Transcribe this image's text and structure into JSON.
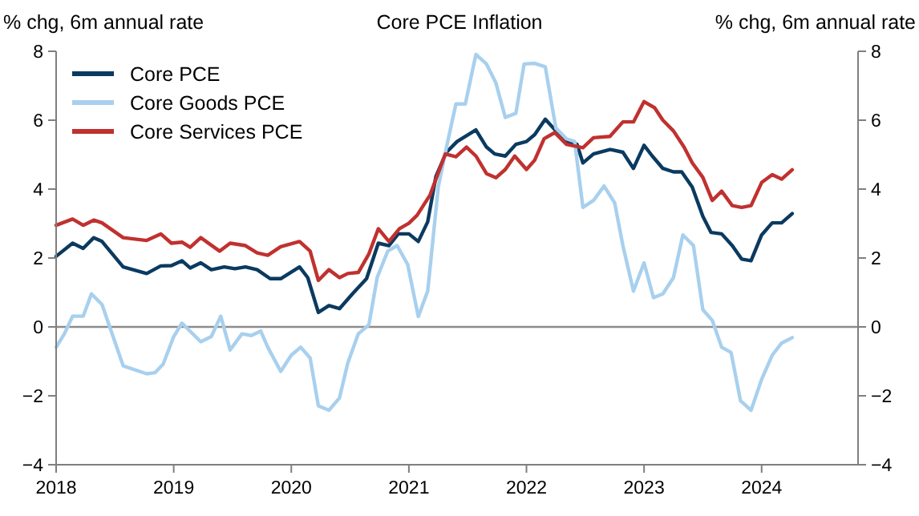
{
  "chart_data": {
    "type": "line",
    "title": "Core PCE Inflation",
    "ylabel": "% chg, 6m annual rate",
    "y2label": "% chg, 6m annual rate",
    "xlim": [
      2018,
      2024.82
    ],
    "xticks": [
      2018,
      2019,
      2020,
      2021,
      2022,
      2023,
      2024
    ],
    "ylim": [
      -4,
      8
    ],
    "yticks": [
      {
        "value": -4,
        "label": "−4"
      },
      {
        "value": -2,
        "label": "−2"
      },
      0,
      2,
      4,
      6,
      8
    ],
    "y2lim": [
      -4,
      8
    ],
    "y2ticks": [
      {
        "value": -4,
        "label": "−4"
      },
      {
        "value": -2,
        "label": "−2"
      },
      0,
      2,
      4,
      6,
      8
    ],
    "grid": false,
    "legend": "top left",
    "line_style": "solid",
    "marker": "none",
    "ref_lines": [
      {
        "axis": "y",
        "value": 0,
        "color": "#8c8c8c"
      }
    ],
    "series": [
      {
        "name": "Core PCE",
        "color": "#0b3a60",
        "x": [
          2018.0,
          2018.14,
          2018.23,
          2018.32,
          2018.39,
          2018.57,
          2018.77,
          2018.89,
          2018.98,
          2019.07,
          2019.14,
          2019.23,
          2019.32,
          2019.43,
          2019.52,
          2019.61,
          2019.71,
          2019.82,
          2019.91,
          2020.07,
          2020.14,
          2020.23,
          2020.32,
          2020.41,
          2020.52,
          2020.64,
          2020.74,
          2020.83,
          2020.91,
          2021.0,
          2021.08,
          2021.16,
          2021.23,
          2021.32,
          2021.41,
          2021.57,
          2021.66,
          2021.73,
          2021.82,
          2021.91,
          2022.0,
          2022.07,
          2022.16,
          2022.25,
          2022.34,
          2022.43,
          2022.48,
          2022.57,
          2022.71,
          2022.82,
          2022.91,
          2023.0,
          2023.07,
          2023.16,
          2023.25,
          2023.32,
          2023.41,
          2023.5,
          2023.57,
          2023.66,
          2023.75,
          2023.83,
          2023.91,
          2024.0,
          2024.09,
          2024.17,
          2024.26
        ],
        "values": [
          2.05,
          2.43,
          2.28,
          2.59,
          2.48,
          1.74,
          1.55,
          1.77,
          1.78,
          1.92,
          1.71,
          1.86,
          1.66,
          1.74,
          1.69,
          1.74,
          1.66,
          1.4,
          1.4,
          1.74,
          1.43,
          0.42,
          0.62,
          0.53,
          0.96,
          1.4,
          2.43,
          2.36,
          2.7,
          2.7,
          2.48,
          3.05,
          4.37,
          5.07,
          5.38,
          5.72,
          5.22,
          5.02,
          4.96,
          5.3,
          5.38,
          5.58,
          6.03,
          5.69,
          5.38,
          5.3,
          4.76,
          5.02,
          5.15,
          5.07,
          4.6,
          5.27,
          4.96,
          4.6,
          4.5,
          4.5,
          4.06,
          3.21,
          2.74,
          2.7,
          2.36,
          1.97,
          1.92,
          2.67,
          3.02,
          3.02,
          3.29
        ]
      },
      {
        "name": "Core Goods PCE",
        "color": "#a8d0ee",
        "x": [
          2018.0,
          2018.07,
          2018.14,
          2018.23,
          2018.3,
          2018.39,
          2018.57,
          2018.77,
          2018.84,
          2018.91,
          2019.0,
          2019.07,
          2019.23,
          2019.32,
          2019.4,
          2019.48,
          2019.58,
          2019.66,
          2019.74,
          2019.8,
          2019.91,
          2020.0,
          2020.08,
          2020.16,
          2020.23,
          2020.32,
          2020.41,
          2020.48,
          2020.57,
          2020.66,
          2020.73,
          2020.82,
          2020.9,
          2020.99,
          2021.08,
          2021.16,
          2021.25,
          2021.32,
          2021.4,
          2021.48,
          2021.57,
          2021.66,
          2021.74,
          2021.82,
          2021.91,
          2021.98,
          2022.07,
          2022.16,
          2022.25,
          2022.34,
          2022.41,
          2022.48,
          2022.57,
          2022.66,
          2022.75,
          2022.82,
          2022.91,
          2023.0,
          2023.08,
          2023.16,
          2023.25,
          2023.33,
          2023.42,
          2023.5,
          2023.58,
          2023.66,
          2023.74,
          2023.82,
          2023.91,
          2024.0,
          2024.09,
          2024.17,
          2024.26
        ],
        "values": [
          -0.59,
          -0.2,
          0.31,
          0.31,
          0.96,
          0.65,
          -1.13,
          -1.36,
          -1.33,
          -1.08,
          -0.28,
          0.11,
          -0.43,
          -0.28,
          0.31,
          -0.67,
          -0.2,
          -0.25,
          -0.12,
          -0.59,
          -1.29,
          -0.82,
          -0.59,
          -0.9,
          -2.29,
          -2.42,
          -2.06,
          -1.05,
          -0.2,
          0.06,
          1.43,
          2.2,
          2.36,
          1.81,
          0.3,
          1.04,
          4.06,
          5.22,
          6.47,
          6.47,
          7.91,
          7.63,
          7.08,
          6.08,
          6.2,
          7.63,
          7.65,
          7.55,
          5.77,
          5.46,
          5.38,
          3.47,
          3.67,
          4.09,
          3.6,
          2.36,
          1.04,
          1.86,
          0.85,
          0.96,
          1.43,
          2.67,
          2.36,
          0.5,
          0.19,
          -0.59,
          -0.74,
          -2.14,
          -2.42,
          -1.52,
          -0.82,
          -0.47,
          -0.31
        ]
      },
      {
        "name": "Core Services PCE",
        "color": "#c0312f",
        "x": [
          2018.0,
          2018.14,
          2018.23,
          2018.32,
          2018.39,
          2018.57,
          2018.77,
          2018.89,
          2018.98,
          2019.07,
          2019.14,
          2019.23,
          2019.39,
          2019.48,
          2019.61,
          2019.71,
          2019.8,
          2019.91,
          2020.07,
          2020.16,
          2020.23,
          2020.32,
          2020.41,
          2020.48,
          2020.57,
          2020.66,
          2020.74,
          2020.83,
          2020.92,
          2021.0,
          2021.07,
          2021.18,
          2021.31,
          2021.4,
          2021.49,
          2021.57,
          2021.66,
          2021.74,
          2021.82,
          2021.9,
          2022.0,
          2022.07,
          2022.15,
          2022.24,
          2022.34,
          2022.48,
          2022.57,
          2022.71,
          2022.82,
          2022.91,
          2023.0,
          2023.09,
          2023.16,
          2023.25,
          2023.34,
          2023.41,
          2023.5,
          2023.58,
          2023.66,
          2023.75,
          2023.83,
          2023.91,
          2024.0,
          2024.09,
          2024.17,
          2024.26
        ],
        "values": [
          2.95,
          3.13,
          2.95,
          3.1,
          3.02,
          2.59,
          2.51,
          2.7,
          2.43,
          2.46,
          2.31,
          2.59,
          2.2,
          2.43,
          2.36,
          2.15,
          2.08,
          2.33,
          2.48,
          2.2,
          1.35,
          1.66,
          1.43,
          1.55,
          1.58,
          2.12,
          2.85,
          2.48,
          2.85,
          3.01,
          3.24,
          3.83,
          5.02,
          4.94,
          5.22,
          4.96,
          4.45,
          4.33,
          4.57,
          4.96,
          4.57,
          4.84,
          5.46,
          5.64,
          5.3,
          5.2,
          5.49,
          5.53,
          5.95,
          5.95,
          6.54,
          6.36,
          6.0,
          5.69,
          5.22,
          4.76,
          4.34,
          3.67,
          3.94,
          3.52,
          3.47,
          3.52,
          4.19,
          4.42,
          4.29,
          4.56
        ]
      }
    ]
  }
}
